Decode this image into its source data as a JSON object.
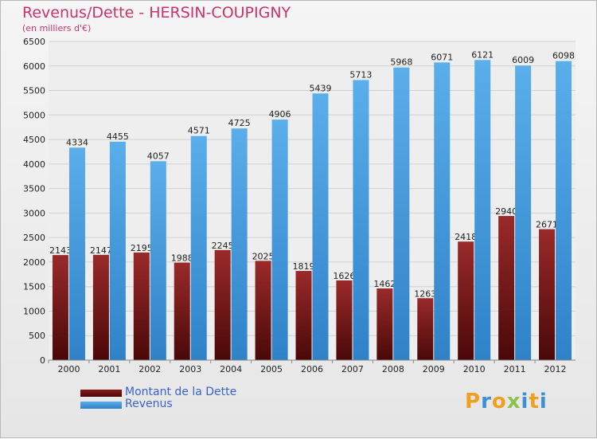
{
  "chart_data": {
    "type": "bar",
    "title": "Revenus/Dette - HERSIN-COUPIGNY",
    "subtitle": "(en milliers d'€)",
    "categories": [
      "2000",
      "2001",
      "2002",
      "2003",
      "2004",
      "2005",
      "2006",
      "2007",
      "2008",
      "2009",
      "2010",
      "2011",
      "2012"
    ],
    "series": [
      {
        "name": "Montant de la Dette",
        "color": "#8b1a1a",
        "values": [
          2143,
          2147,
          2195,
          1988,
          2245,
          2025,
          1819,
          1626,
          1462,
          1263,
          2418,
          2940,
          2671
        ],
        "labels": [
          "2143",
          "2147",
          "2195",
          "1988",
          "2245",
          "2025",
          "1819",
          "1626",
          "1462",
          "1263",
          "2418",
          "2940",
          "2671"
        ]
      },
      {
        "name": "Revenus",
        "color": "#4aa3e6",
        "values": [
          4334,
          4455,
          4057,
          4571,
          4725,
          4906,
          5439,
          5713,
          5968,
          6071,
          6121,
          6009,
          6098
        ],
        "labels": [
          "4334",
          "4455",
          "4057",
          "4571",
          "4725",
          "4906",
          "5439",
          "5713",
          "5968",
          "6071",
          "6121",
          "6009",
          "6098"
        ]
      }
    ],
    "ylim": [
      0,
      6500
    ],
    "yticks": [
      "0",
      "500",
      "1000",
      "1500",
      "2000",
      "2500",
      "3000",
      "3500",
      "4000",
      "4500",
      "5000",
      "5500",
      "6000",
      "6500"
    ],
    "grid": true,
    "legend": "bottom-left"
  },
  "legend": {
    "items": [
      {
        "label": "Montant de la Dette",
        "color": "#8b1a1a"
      },
      {
        "label": "Revenus",
        "color": "#4aa3e6"
      }
    ]
  },
  "logo": {
    "letters": [
      "P",
      "r",
      "o",
      "x",
      "i",
      "t",
      "i"
    ],
    "colors": [
      "#f0a020",
      "#3b8fd6",
      "#f0a020",
      "#8bc34a",
      "#3b8fd6",
      "#f0a020",
      "#3b8fd6"
    ]
  }
}
